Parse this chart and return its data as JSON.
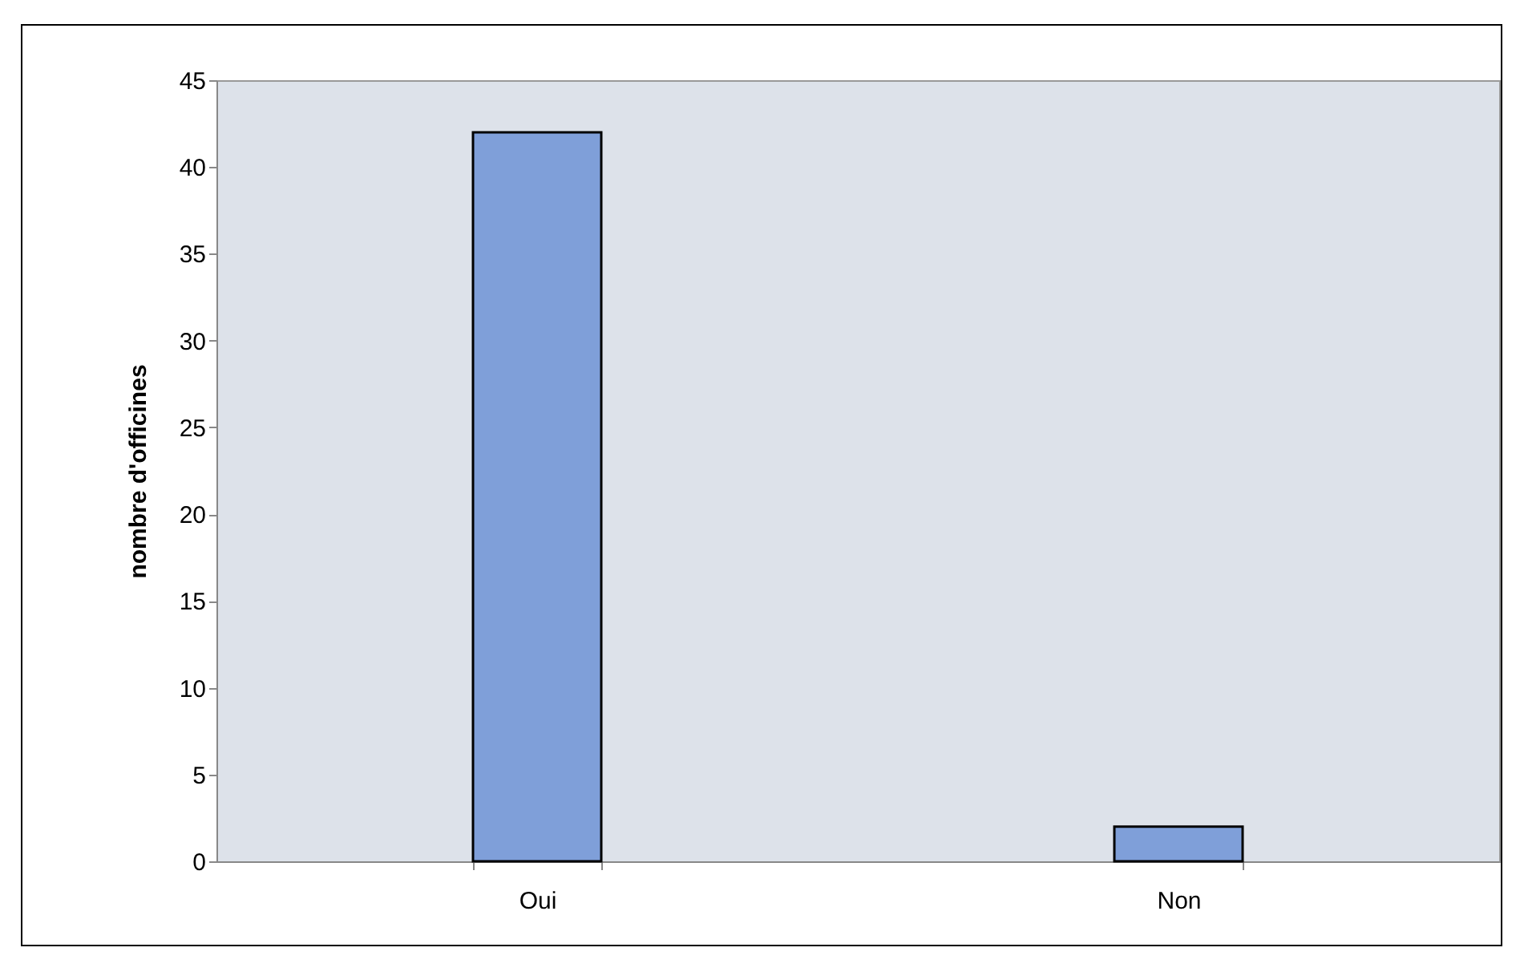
{
  "chart_data": {
    "type": "bar",
    "ylabel": "nombre d'officines",
    "categories": [
      "Oui",
      "Non"
    ],
    "values": [
      42,
      2
    ],
    "color": "#7f9fd9",
    "ylim": [
      0,
      45
    ],
    "yticks": [
      0,
      5,
      10,
      15,
      20,
      25,
      30,
      35,
      40,
      45
    ],
    "grid": false
  }
}
